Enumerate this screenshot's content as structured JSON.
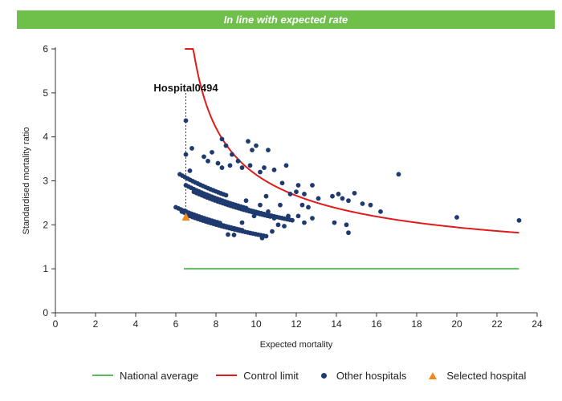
{
  "banner": {
    "text": "In line with expected rate",
    "color": "#6fbf4b"
  },
  "chart_data": {
    "type": "scatter",
    "xlabel": "Expected mortality",
    "ylabel": "Standardised mortality ratio",
    "xlim": [
      0,
      24
    ],
    "ylim": [
      0,
      6
    ],
    "xticks": [
      "0",
      "2",
      "4",
      "6",
      "8",
      "10",
      "12",
      "14",
      "16",
      "18",
      "20",
      "22",
      "24"
    ],
    "yticks": [
      "0",
      "1",
      "2",
      "3",
      "4",
      "5",
      "6"
    ],
    "grid": false,
    "legend_position": "bottom",
    "national_average": {
      "name": "National average",
      "color": "#5cb85c",
      "x": [
        6.4,
        23.1
      ],
      "y": [
        1,
        1
      ]
    },
    "control_limit": {
      "name": "Control limit",
      "color": "#e01b1b",
      "x": [
        6.45,
        23.1
      ],
      "x_at_y6": 6.45,
      "k": 14.82,
      "offset": 1.12
    },
    "other_hospitals": {
      "name": "Other hospitals",
      "color": "#1f3a6e",
      "points": [
        [
          6.5,
          4.37
        ],
        [
          6.5,
          3.6
        ],
        [
          6.8,
          3.74
        ],
        [
          6.7,
          3.23
        ],
        [
          7.4,
          3.55
        ],
        [
          7.6,
          3.45
        ],
        [
          7.8,
          3.65
        ],
        [
          8.3,
          3.95
        ],
        [
          8.5,
          3.8
        ],
        [
          8.8,
          3.6
        ],
        [
          9.1,
          3.45
        ],
        [
          9.6,
          3.9
        ],
        [
          9.8,
          3.7
        ],
        [
          10.0,
          3.8
        ],
        [
          10.6,
          3.7
        ],
        [
          10.9,
          3.25
        ],
        [
          11.5,
          3.35
        ],
        [
          10.4,
          3.3
        ],
        [
          10.2,
          3.2
        ],
        [
          8.1,
          3.4
        ],
        [
          8.3,
          3.3
        ],
        [
          8.7,
          3.35
        ],
        [
          9.3,
          3.3
        ],
        [
          9.7,
          3.35
        ],
        [
          11.3,
          2.95
        ],
        [
          11.7,
          2.7
        ],
        [
          12.1,
          2.9
        ],
        [
          12.4,
          2.7
        ],
        [
          12.6,
          2.4
        ],
        [
          12.8,
          2.9
        ],
        [
          13.1,
          2.6
        ],
        [
          12.0,
          2.75
        ],
        [
          12.3,
          2.45
        ],
        [
          13.8,
          2.65
        ],
        [
          14.1,
          2.7
        ],
        [
          14.3,
          2.6
        ],
        [
          14.6,
          2.55
        ],
        [
          14.9,
          2.72
        ],
        [
          15.3,
          2.48
        ],
        [
          15.7,
          2.45
        ],
        [
          16.2,
          2.3
        ],
        [
          17.1,
          3.15
        ],
        [
          20.0,
          2.17
        ],
        [
          23.1,
          2.1
        ],
        [
          11.2,
          2.45
        ],
        [
          11.6,
          2.2
        ],
        [
          12.1,
          2.2
        ],
        [
          12.4,
          2.05
        ],
        [
          12.8,
          2.15
        ],
        [
          13.9,
          2.05
        ],
        [
          14.5,
          2.0
        ],
        [
          14.6,
          1.82
        ],
        [
          11.1,
          2.0
        ],
        [
          11.4,
          1.97
        ],
        [
          10.6,
          2.3
        ],
        [
          10.9,
          2.15
        ],
        [
          10.3,
          1.7
        ],
        [
          10.8,
          1.85
        ],
        [
          9.5,
          2.55
        ],
        [
          9.9,
          2.2
        ],
        [
          8.6,
          1.78
        ],
        [
          8.9,
          1.77
        ],
        [
          10.5,
          2.65
        ],
        [
          10.2,
          2.45
        ],
        [
          9.3,
          2.05
        ]
      ]
    },
    "selected_hospital": {
      "name": "Selected hospital",
      "color": "#f08a1c",
      "x": 6.5,
      "y": 2.17,
      "label": "Hospital0494"
    },
    "arcs": [
      {
        "x0": 6.2,
        "x1": 8.5,
        "k": 0.52,
        "y_at_x0": 3.15
      },
      {
        "x0": 6.5,
        "x1": 9.5,
        "k": 0.52,
        "y_at_x0": 2.9
      },
      {
        "x0": 6.9,
        "x1": 10.7,
        "k": 0.52,
        "y_at_x0": 2.75
      },
      {
        "x0": 7.3,
        "x1": 11.8,
        "k": 0.52,
        "y_at_x0": 2.7
      },
      {
        "x0": 6.0,
        "x1": 8.2,
        "k": 0.52,
        "y_at_x0": 2.4
      },
      {
        "x0": 6.3,
        "x1": 9.3,
        "k": 0.52,
        "y_at_x0": 2.3
      },
      {
        "x0": 6.7,
        "x1": 10.5,
        "k": 0.52,
        "y_at_x0": 2.2
      }
    ]
  },
  "legend": [
    {
      "label": "National average",
      "kind": "line",
      "color": "#5cb85c"
    },
    {
      "label": "Control limit",
      "kind": "line",
      "color": "#e01b1b"
    },
    {
      "label": "Other hospitals",
      "kind": "dot",
      "color": "#1f3a6e"
    },
    {
      "label": "Selected hospital",
      "kind": "triangle",
      "color": "#f08a1c"
    }
  ]
}
